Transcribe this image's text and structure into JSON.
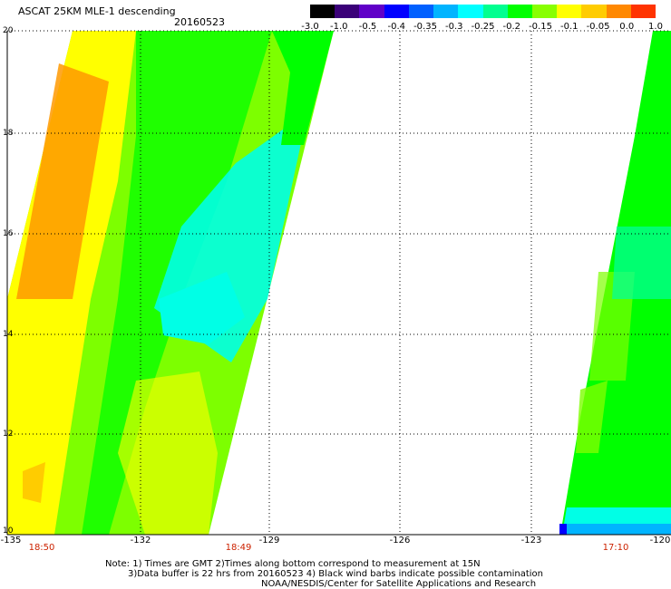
{
  "title": "ASCAT 25KM MLE-1 descending",
  "date": "20160523",
  "colorbar": {
    "labels": [
      "-3.0",
      "-1.0",
      "-0.5",
      "-0.4",
      "-0.35",
      "-0.3",
      "-0.25",
      "-0.2",
      "-0.15",
      "-0.1",
      "-0.05",
      "0.0",
      "1.0"
    ],
    "colors": [
      "#000000",
      "#3a0078",
      "#6000c8",
      "#0000ff",
      "#0060ff",
      "#00b4ff",
      "#00ffff",
      "#00ff90",
      "#00ff00",
      "#88ff00",
      "#ffff00",
      "#ffcc00",
      "#ff8800",
      "#ff3300"
    ]
  },
  "map": {
    "lat_labels": [
      "20",
      "18",
      "16",
      "14",
      "12",
      "10"
    ],
    "lon_labels": [
      "-135",
      "-132",
      "-129",
      "-126",
      "-123",
      "-120"
    ],
    "time_labels": [
      "18:50",
      "18:49",
      "17:10"
    ],
    "value_colors": {
      "cyan": "#00ffe6",
      "green": "#00ff00",
      "yellow_green": "#7dff00",
      "yellow": "#ffff00",
      "orange": "#ff9900"
    }
  },
  "notes": [
    "Note: 1) Times are GMT 2)Times along bottom correspond to measurement at 15N",
    "3)Data buffer is 22 hrs from 20160523 4) Black wind barbs indicate possible contamination",
    "NOAA/NESDIS/Center for Satellite Applications and Research"
  ]
}
